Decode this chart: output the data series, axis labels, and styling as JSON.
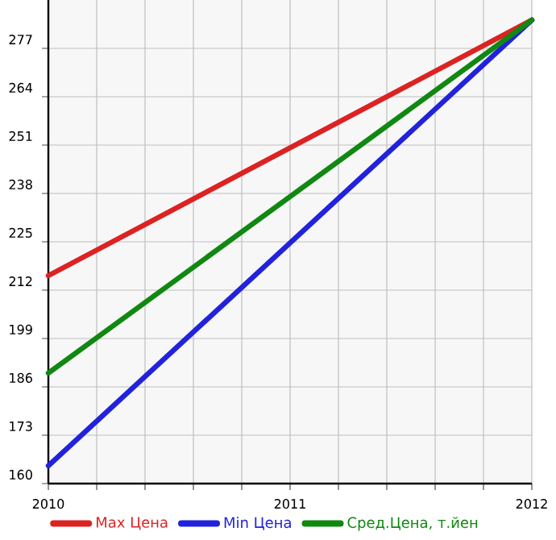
{
  "chart_data": {
    "type": "line",
    "x": [
      2010,
      2012
    ],
    "series": [
      {
        "name": "Max Цена",
        "color": "#dd2222",
        "values": [
          215.9,
          284.6
        ]
      },
      {
        "name": "Min Цена",
        "color": "#2222dd",
        "values": [
          164.8,
          284.6
        ]
      },
      {
        "name": "Сред.Цена, т.йен",
        "color": "#118811",
        "values": [
          189.7,
          284.6
        ]
      }
    ],
    "xlim": [
      2010,
      2012
    ],
    "xticks": [
      2010,
      {
        "value": 2010.2,
        "label": null
      },
      {
        "value": 2010.4,
        "label": null
      },
      {
        "value": 2010.6,
        "label": null
      },
      {
        "value": 2010.8,
        "label": null
      },
      2011,
      {
        "value": 2011.2,
        "label": null
      },
      {
        "value": 2011.4,
        "label": null
      },
      {
        "value": 2011.6,
        "label": null
      },
      {
        "value": 2011.8,
        "label": null
      },
      2012
    ],
    "ylim": [
      160,
      290
    ],
    "yticks": [
      160,
      173,
      186,
      199,
      212,
      225,
      238,
      251,
      264,
      277
    ],
    "grid": true,
    "legend": "bottom",
    "marker": "none",
    "line_style": "solid"
  }
}
